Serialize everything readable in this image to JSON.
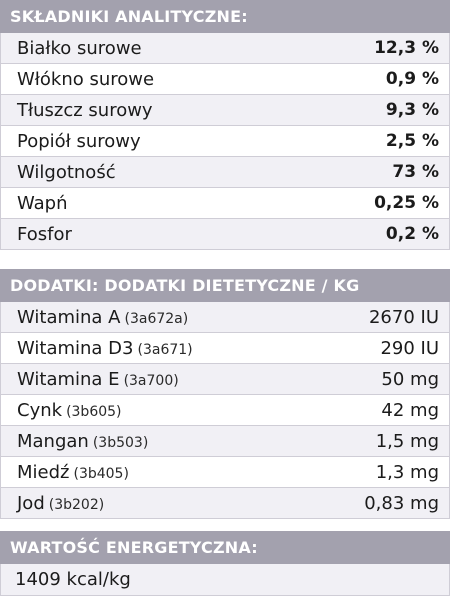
{
  "analytical": {
    "title": "SKŁADNIKI ANALITYCZNE:",
    "rows": [
      {
        "name": "Białko surowe",
        "value": "12,3 %"
      },
      {
        "name": "Włókno surowe",
        "value": "0,9 %"
      },
      {
        "name": "Tłuszcz surowy",
        "value": "9,3 %"
      },
      {
        "name": "Popiół surowy",
        "value": "2,5 %"
      },
      {
        "name": "Wilgotność",
        "value": "73 %"
      },
      {
        "name": "Wapń",
        "value": "0,25 %"
      },
      {
        "name": "Fosfor",
        "value": "0,2 %"
      }
    ]
  },
  "additives": {
    "title": "DODATKI: DODATKI DIETETYCZNE / KG",
    "rows": [
      {
        "name": "Witamina A",
        "code": "(3a672a)",
        "value": "2670 IU"
      },
      {
        "name": "Witamina D3",
        "code": "(3a671)",
        "value": "290 IU"
      },
      {
        "name": "Witamina E",
        "code": "(3a700)",
        "value": "50 mg"
      },
      {
        "name": "Cynk",
        "code": "(3b605)",
        "value": "42 mg"
      },
      {
        "name": "Mangan",
        "code": "(3b503)",
        "value": "1,5 mg"
      },
      {
        "name": "Miedź",
        "code": "(3b405)",
        "value": "1,3 mg"
      },
      {
        "name": "Jod",
        "code": "(3b202)",
        "value": "0,83 mg"
      }
    ]
  },
  "energy": {
    "title": "WARTOŚĆ ENERGETYCZNA:",
    "value": "1409 kcal/kg"
  },
  "colors": {
    "header_bg": "#a3a1ae",
    "row_alt_bg": "#f1f0f5",
    "border": "#cfcdd6"
  }
}
